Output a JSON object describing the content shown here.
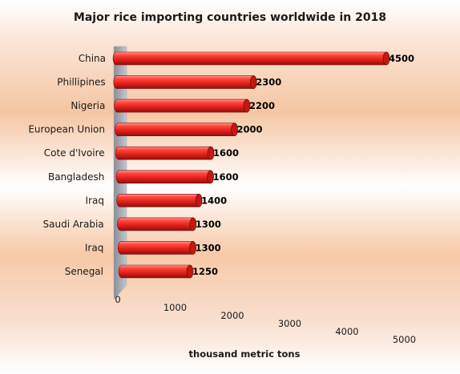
{
  "chart_data": {
    "type": "bar",
    "orientation": "horizontal",
    "title": "Major rice importing countries worldwide in 2018",
    "xlabel": "thousand metric tons",
    "ylabel": "",
    "categories": [
      "China",
      "Phillipines",
      "Nigeria",
      "European Union",
      "Cote d'Ivoire",
      "Bangladesh",
      "Iraq",
      "Saudi Arabia",
      "Iraq",
      "Senegal"
    ],
    "values": [
      4500,
      2300,
      2200,
      2000,
      1600,
      1600,
      1400,
      1300,
      1300,
      1250
    ],
    "xlim": [
      0,
      5000
    ],
    "ticks": [
      "0",
      "1000",
      "2000",
      "3000",
      "4000",
      "5000"
    ],
    "grid": false,
    "legend": "none",
    "bar_color": "#e8231e"
  }
}
